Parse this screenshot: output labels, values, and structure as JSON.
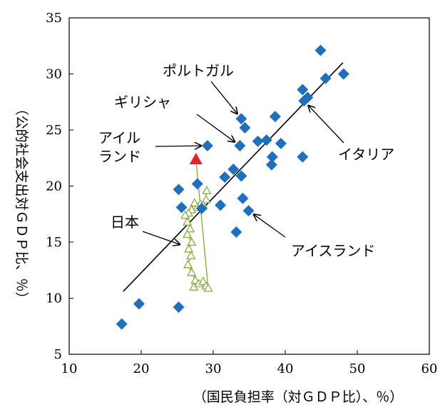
{
  "chart_data": {
    "type": "scatter",
    "xlabel": "（国民負担率（対ＧＤＰ比）、％）",
    "ylabel": "（公的社会支出対ＧＤＰ比、％）",
    "xlim": [
      10,
      60
    ],
    "ylim": [
      5,
      35
    ],
    "xticks": [
      "10",
      "20",
      "30",
      "40",
      "50",
      "60"
    ],
    "yticks": [
      "5",
      "10",
      "15",
      "20",
      "25",
      "30",
      "35"
    ],
    "grid": false,
    "legend": "none",
    "colors": {
      "countries": "#1f6fbf",
      "japan": "#8aab44",
      "japan_latest": "#e8202a",
      "line": "#000000"
    },
    "series": [
      {
        "marker": "diamond",
        "points": [
          [
            17.3,
            7.7
          ],
          [
            19.7,
            9.5
          ],
          [
            25.2,
            9.2
          ],
          [
            25.2,
            19.7
          ],
          [
            25.6,
            18.1
          ],
          [
            27.8,
            20.2
          ],
          [
            28.4,
            18.0
          ],
          [
            29.2,
            23.6
          ],
          [
            31.0,
            18.3
          ],
          [
            31.6,
            20.8
          ],
          [
            32.8,
            21.5
          ],
          [
            33.2,
            15.9
          ],
          [
            33.7,
            23.6
          ],
          [
            33.9,
            20.9
          ],
          [
            33.9,
            26.0
          ],
          [
            34.1,
            18.9
          ],
          [
            34.4,
            25.2
          ],
          [
            34.9,
            17.8
          ],
          [
            36.2,
            24.0
          ],
          [
            37.4,
            24.1
          ],
          [
            38.1,
            21.9
          ],
          [
            38.2,
            22.6
          ],
          [
            38.6,
            26.2
          ],
          [
            39.4,
            23.8
          ],
          [
            42.4,
            28.6
          ],
          [
            42.4,
            22.6
          ],
          [
            42.6,
            27.6
          ],
          [
            43.1,
            27.9
          ],
          [
            44.9,
            32.1
          ],
          [
            45.6,
            29.6
          ],
          [
            48.1,
            30.0
          ]
        ]
      },
      {
        "marker": "triangle-open",
        "points": [
          [
            29.1,
            19.6
          ],
          [
            29.0,
            18.8
          ],
          [
            28.6,
            18.3
          ],
          [
            28.2,
            18.4
          ],
          [
            27.8,
            18.1
          ],
          [
            27.4,
            18.5
          ],
          [
            27.0,
            17.9
          ],
          [
            26.6,
            17.6
          ],
          [
            26.1,
            17.4
          ],
          [
            26.4,
            16.8
          ],
          [
            26.8,
            16.2
          ],
          [
            26.4,
            15.7
          ],
          [
            27.0,
            15.0
          ],
          [
            26.6,
            14.4
          ],
          [
            26.9,
            13.8
          ],
          [
            26.5,
            13.0
          ],
          [
            27.0,
            12.3
          ],
          [
            27.5,
            11.6
          ],
          [
            27.3,
            11.0
          ],
          [
            28.0,
            11.3
          ],
          [
            28.6,
            11.5
          ],
          [
            29.0,
            11.1
          ],
          [
            29.3,
            10.9
          ]
        ]
      },
      {
        "marker": "triangle-filled",
        "points": [
          [
            27.6,
            22.4
          ]
        ]
      }
    ],
    "fit_line": {
      "x": [
        17.5,
        48.0
      ],
      "y": [
        10.6,
        31.0
      ]
    },
    "annotations": [
      {
        "lines": [
          "ポルトガル"
        ],
        "point": [
          33.9,
          26.0
        ]
      },
      {
        "lines": [
          "ギリシャ"
        ],
        "point": [
          33.7,
          23.6
        ]
      },
      {
        "lines": [
          "アイル",
          "ランド"
        ],
        "point": [
          29.2,
          23.6
        ]
      },
      {
        "lines": [
          "イタリア"
        ],
        "point": [
          42.6,
          27.6
        ]
      },
      {
        "lines": [
          "日本"
        ],
        "point": [
          26.2,
          14.6
        ]
      },
      {
        "lines": [
          "アイスランド"
        ],
        "point": [
          34.9,
          17.8
        ]
      }
    ]
  }
}
